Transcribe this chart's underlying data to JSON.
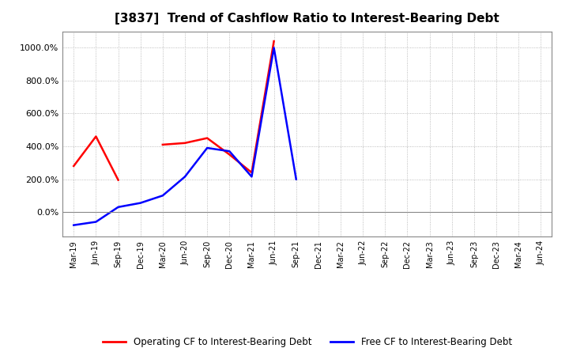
{
  "title": "[3837]  Trend of Cashflow Ratio to Interest-Bearing Debt",
  "x_labels": [
    "Mar-19",
    "Jun-19",
    "Sep-19",
    "Dec-19",
    "Mar-20",
    "Jun-20",
    "Sep-20",
    "Dec-20",
    "Mar-21",
    "Jun-21",
    "Sep-21",
    "Dec-21",
    "Mar-22",
    "Jun-22",
    "Sep-22",
    "Dec-22",
    "Mar-23",
    "Jun-23",
    "Sep-23",
    "Dec-23",
    "Mar-24",
    "Jun-24"
  ],
  "operating_cf": [
    280,
    460,
    195,
    null,
    410,
    420,
    450,
    350,
    240,
    1040,
    null,
    null,
    null,
    null,
    null,
    null,
    null,
    null,
    null,
    null,
    null,
    null
  ],
  "free_cf": [
    -80,
    -60,
    30,
    55,
    100,
    215,
    390,
    370,
    215,
    1000,
    200,
    null,
    null,
    null,
    null,
    null,
    null,
    null,
    null,
    null,
    null,
    null
  ],
  "ylim": [
    -150,
    1100
  ],
  "yticks": [
    0,
    200,
    400,
    600,
    800,
    1000
  ],
  "operating_color": "#FF0000",
  "free_color": "#0000FF",
  "background_color": "#FFFFFF",
  "grid_color": "#AAAAAA",
  "title_fontsize": 11,
  "legend_labels": [
    "Operating CF to Interest-Bearing Debt",
    "Free CF to Interest-Bearing Debt"
  ]
}
